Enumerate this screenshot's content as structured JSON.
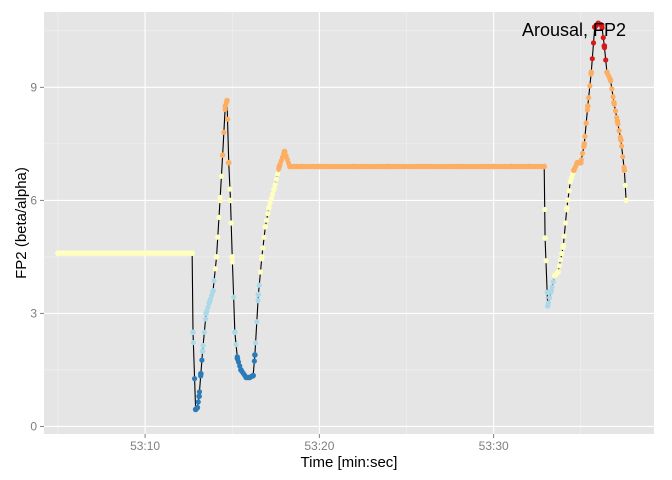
{
  "chart_data": {
    "type": "scatter",
    "title": "Arousal, FP2",
    "xlabel": "Time [min:sec]",
    "ylabel": "FP2 (beta/alpha)",
    "x_unit": "seconds",
    "xlim": [
      "53:04.2",
      "53:39.2"
    ],
    "ylim": [
      -0.2,
      11.0
    ],
    "x_ticks": [
      "53:10",
      "53:20",
      "53:30"
    ],
    "x_minor_ticks": [
      "53:05",
      "53:15",
      "53:25",
      "53:35"
    ],
    "y_ticks": [
      0,
      3,
      6,
      9
    ],
    "grid": true,
    "legend": "none",
    "line_color": "#000000",
    "panel_background": "#e5e5e5",
    "color_scale": [
      {
        "min": -1,
        "color": "#2c7bb6"
      },
      {
        "min": 2.0,
        "color": "#abd9e9"
      },
      {
        "min": 4.0,
        "color": "#ffffbf"
      },
      {
        "min": 6.8,
        "color": "#fdae61"
      },
      {
        "min": 9.5,
        "color": "#d7191c"
      }
    ],
    "series": [
      {
        "x": [
          "53:05.0",
          "53:06.0",
          "53:07.0",
          "53:08.0",
          "53:09.0",
          "53:10.0",
          "53:11.0",
          "53:12.0",
          "53:12.7",
          "53:12.75",
          "53:12.9",
          "53:13.0",
          "53:13.1",
          "53:13.2",
          "53:13.3",
          "53:13.5",
          "53:13.7",
          "53:13.9",
          "53:14.1",
          "53:14.3",
          "53:14.45",
          "53:14.6",
          "53:14.7",
          "53:14.8",
          "53:14.9",
          "53:15.0",
          "53:15.15",
          "53:15.3",
          "53:15.5",
          "53:15.8",
          "53:16.0",
          "53:16.2",
          "53:16.3",
          "53:16.5",
          "53:16.7",
          "53:16.9",
          "53:17.1",
          "53:17.4",
          "53:17.7",
          "53:18.0",
          "53:18.3",
          "53:18.5",
          "53:18.7",
          "53:19.0",
          "53:20.0",
          "53:22.0",
          "53:24.0",
          "53:26.0",
          "53:28.0",
          "53:30.0",
          "53:31.0",
          "53:32.0",
          "53:32.9",
          "53:32.95",
          "53:33.1",
          "53:33.3",
          "53:33.5",
          "53:33.7",
          "53:34.0",
          "53:34.2",
          "53:34.4",
          "53:34.6",
          "53:34.8",
          "53:35.0",
          "53:35.2",
          "53:35.4",
          "53:35.6",
          "53:35.8",
          "53:36.0",
          "53:36.2",
          "53:36.35",
          "53:36.5",
          "53:36.7",
          "53:36.9",
          "53:37.1",
          "53:37.3",
          "53:37.5",
          "53:37.6"
        ],
        "y": [
          4.6,
          4.6,
          4.6,
          4.6,
          4.6,
          4.6,
          4.6,
          4.6,
          4.6,
          2.5,
          0.45,
          0.5,
          0.8,
          1.4,
          2.0,
          3.0,
          3.3,
          3.6,
          4.5,
          6.0,
          7.2,
          8.5,
          8.65,
          7.0,
          6.0,
          4.5,
          2.5,
          1.8,
          1.5,
          1.3,
          1.3,
          1.35,
          1.9,
          3.5,
          4.5,
          5.3,
          5.8,
          6.3,
          6.9,
          7.3,
          6.9,
          6.9,
          6.9,
          6.9,
          6.9,
          6.9,
          6.9,
          6.9,
          6.9,
          6.9,
          6.9,
          6.9,
          6.9,
          5.0,
          3.2,
          3.6,
          4.0,
          4.1,
          4.8,
          5.8,
          6.5,
          6.8,
          7.0,
          7.0,
          7.5,
          8.5,
          9.4,
          10.6,
          10.7,
          10.65,
          10.1,
          9.4,
          9.2,
          8.6,
          8.1,
          7.6,
          6.8,
          6.0
        ]
      }
    ]
  }
}
